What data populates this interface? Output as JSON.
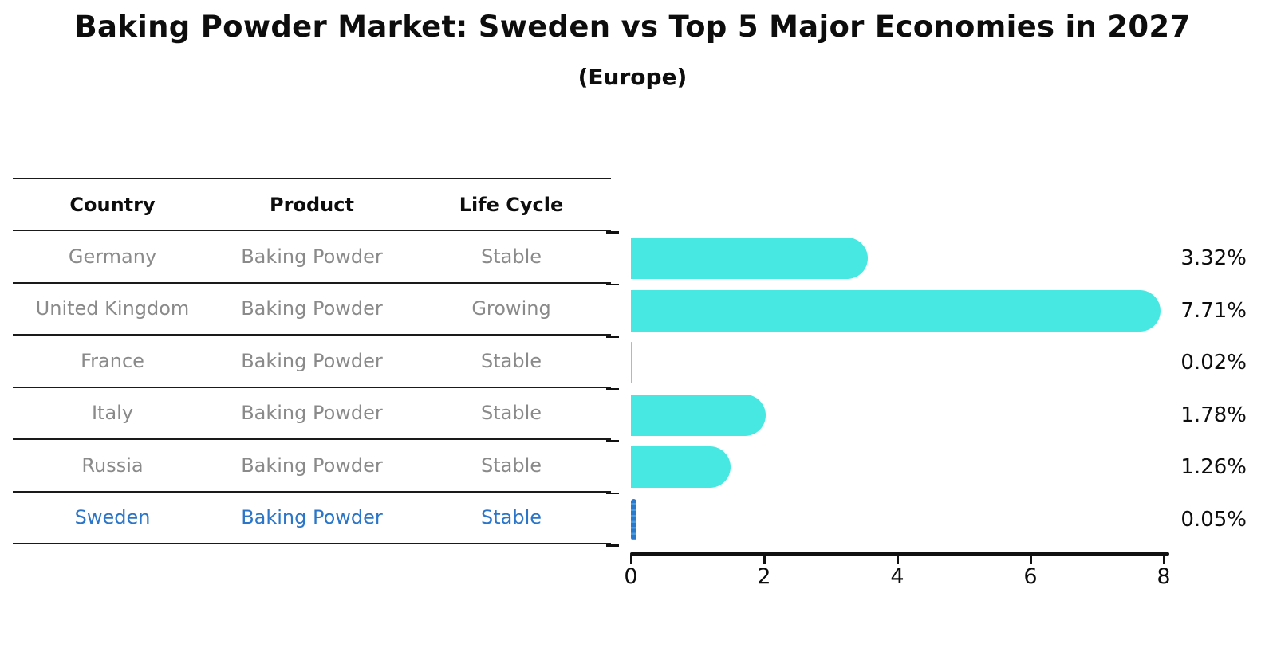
{
  "title": "Baking Powder Market: Sweden vs Top 5 Major Economies in 2027",
  "subtitle": "(Europe)",
  "table": {
    "columns": [
      "Country",
      "Product",
      "Life Cycle"
    ],
    "rows": [
      {
        "country": "Germany",
        "product": "Baking Powder",
        "life_cycle": "Stable",
        "highlight": false
      },
      {
        "country": "United Kingdom",
        "product": "Baking Powder",
        "life_cycle": "Growing",
        "highlight": false
      },
      {
        "country": "France",
        "product": "Baking Powder",
        "life_cycle": "Stable",
        "highlight": false
      },
      {
        "country": "Italy",
        "product": "Baking Powder",
        "life_cycle": "Stable",
        "highlight": false
      },
      {
        "country": "Russia",
        "product": "Baking Powder",
        "life_cycle": "Stable",
        "highlight": false
      },
      {
        "country": "Sweden",
        "product": "Baking Powder",
        "life_cycle": "Stable",
        "highlight": true
      }
    ]
  },
  "chart_data": {
    "type": "bar",
    "orientation": "horizontal",
    "title": "Baking Powder Market: Sweden vs Top 5 Major Economies in 2027",
    "subtitle": "(Europe)",
    "categories": [
      "Germany",
      "United Kingdom",
      "France",
      "Italy",
      "Russia",
      "Sweden"
    ],
    "values": [
      3.32,
      7.71,
      0.02,
      1.78,
      1.26,
      0.05
    ],
    "value_labels": [
      "3.32%",
      "7.71%",
      "0.02%",
      "1.78%",
      "1.26%",
      "0.05%"
    ],
    "xlabel": "",
    "ylabel": "",
    "xlim": [
      0,
      8
    ],
    "xticks": [
      0,
      2,
      4,
      6,
      8
    ],
    "grid": false,
    "legend": "none",
    "highlight_category": "Sweden"
  },
  "colors": {
    "bar": "#48E8E2",
    "highlight_bar": "#2b79cb",
    "highlight_text": "#2b76c9",
    "cell_text": "#8a8a8a",
    "heading_text": "#0d0d0d",
    "axis": "#111111",
    "background": "#ffffff"
  }
}
